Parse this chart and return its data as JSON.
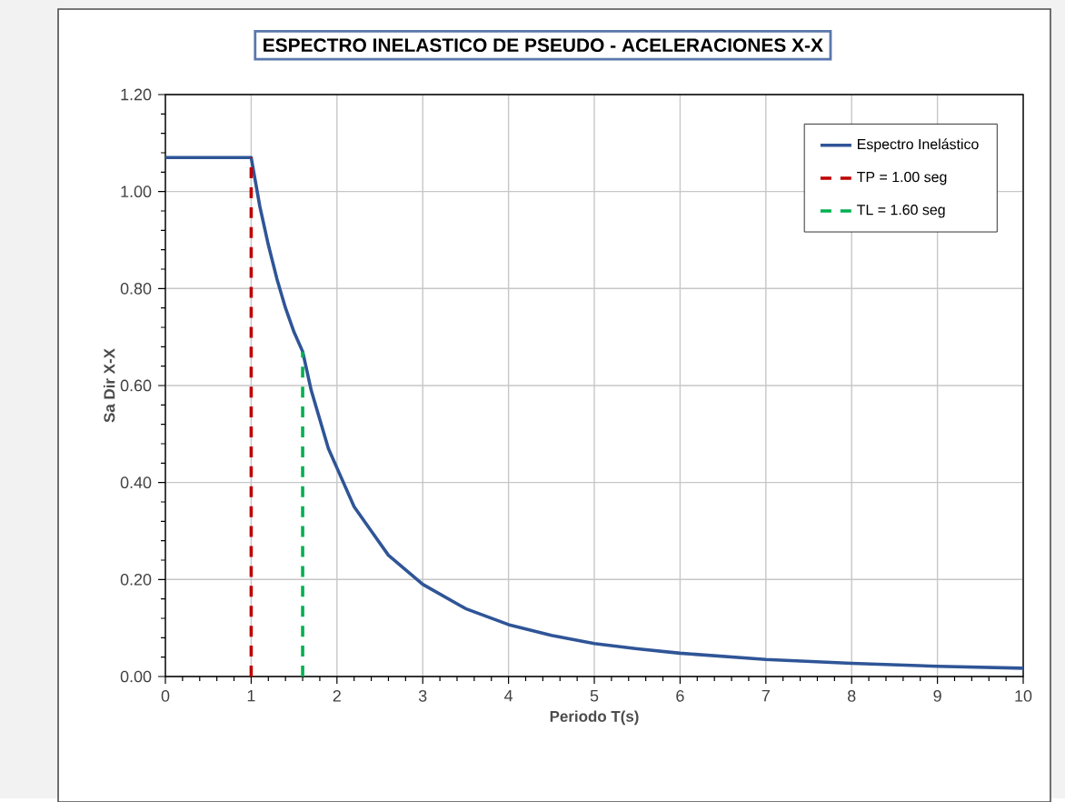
{
  "chart_data": {
    "type": "line",
    "title": "ESPECTRO INELASTICO DE PSEUDO - ACELERACIONES X-X",
    "xlabel": "Periodo T(s)",
    "ylabel": "Sa Dir X-X",
    "xlim": [
      0,
      10
    ],
    "ylim": [
      0,
      1.2
    ],
    "xticks": [
      0,
      1,
      2,
      3,
      4,
      5,
      6,
      7,
      8,
      9,
      10
    ],
    "yticks": [
      {
        "value": 0,
        "label": "0.00"
      },
      {
        "value": 0.2,
        "label": "0.20"
      },
      {
        "value": 0.4,
        "label": "0.40"
      },
      {
        "value": 0.6,
        "label": "0.60"
      },
      {
        "value": 0.8,
        "label": "0.80"
      },
      {
        "value": 1.0,
        "label": "1.00"
      },
      {
        "value": 1.2,
        "label": "1.20"
      }
    ],
    "grid": true,
    "legend": "top right",
    "series": [
      {
        "name": "Espectro Inelástico",
        "color": "#2f5597",
        "line_style": "solid",
        "x": [
          0,
          1,
          1.1,
          1.2,
          1.3,
          1.4,
          1.5,
          1.6,
          1.7,
          1.8,
          1.9,
          2.0,
          2.2,
          2.4,
          2.6,
          2.8,
          3.0,
          3.5,
          4.0,
          4.5,
          5.0,
          5.5,
          6.0,
          7.0,
          8.0,
          9.0,
          10.0
        ],
        "values": [
          1.07,
          1.07,
          0.97,
          0.89,
          0.82,
          0.76,
          0.71,
          0.67,
          0.59,
          0.53,
          0.47,
          0.43,
          0.35,
          0.3,
          0.25,
          0.22,
          0.19,
          0.14,
          0.107,
          0.085,
          0.068,
          0.057,
          0.048,
          0.035,
          0.027,
          0.021,
          0.017
        ]
      },
      {
        "name": "TP = 1.00 seg",
        "color": "#c00000",
        "line_style": "dashed",
        "x": [
          1,
          1
        ],
        "values": [
          0,
          1.07
        ]
      },
      {
        "name": "TL = 1.60 seg",
        "color": "#00b050",
        "line_style": "dashed",
        "x": [
          1.6,
          1.6
        ],
        "values": [
          0,
          0.67
        ]
      }
    ]
  }
}
